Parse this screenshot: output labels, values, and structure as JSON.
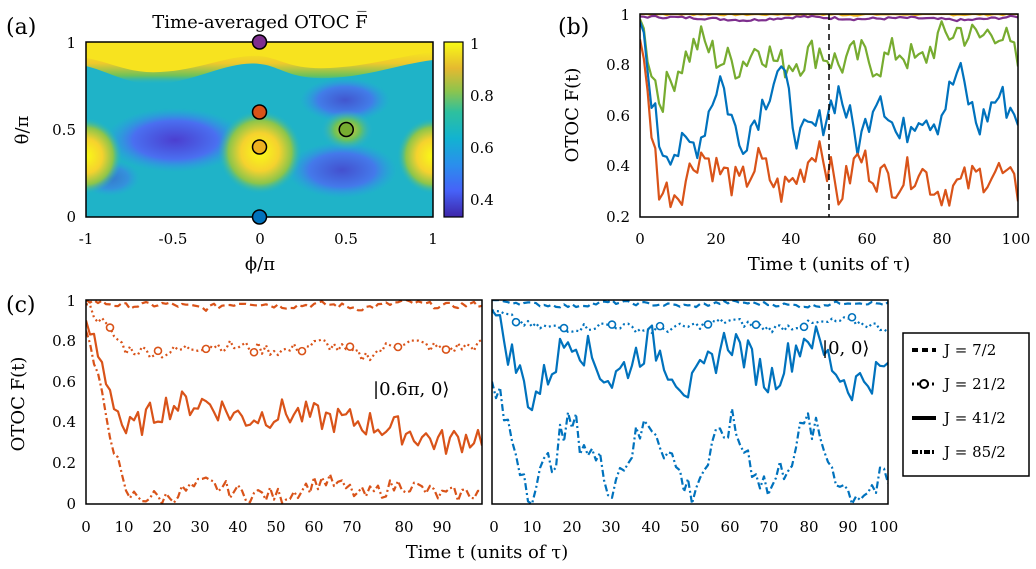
{
  "panels": {
    "a": {
      "label": "(a)",
      "title": "Time-averaged OTOC F̅",
      "xlabel": "ϕ/π",
      "ylabel": "θ/π",
      "xticks": [
        "-1",
        "-0.5",
        "0",
        "0.5",
        "1"
      ],
      "yticks": [
        "0",
        "0.5",
        "1"
      ],
      "colorbar_ticks": [
        "0.4",
        "0.6",
        "0.8",
        "1"
      ],
      "colormap": "parula",
      "colorbar_range": [
        0.33,
        1.0
      ],
      "markers": [
        {
          "phi": 0.0,
          "theta": 1.0,
          "color": "#7e2f8e"
        },
        {
          "phi": 0.0,
          "theta": 0.6,
          "color": "#d95319"
        },
        {
          "phi": 0.0,
          "theta": 0.4,
          "color": "#edb120"
        },
        {
          "phi": 0.5,
          "theta": 0.5,
          "color": "#77ac30"
        },
        {
          "phi": 0.0,
          "theta": 0.0,
          "color": "#0072bd"
        }
      ]
    },
    "b": {
      "label": "(b)",
      "xlabel": "Time t (units of τ)",
      "ylabel": "OTOC F(t)",
      "xticks": [
        "0",
        "20",
        "40",
        "60",
        "80",
        "100"
      ],
      "yticks": [
        "0.2",
        "0.4",
        "0.6",
        "0.8",
        "1"
      ],
      "vline_x": 50
    },
    "c": {
      "label": "(c)",
      "xlabel": "Time t (units of τ)",
      "ylabel": "OTOC F(t)",
      "left_xticks": [
        "0",
        "10",
        "20",
        "30",
        "40",
        "50",
        "60",
        "70",
        "80",
        "90"
      ],
      "right_xticks": [
        "0",
        "10",
        "20",
        "30",
        "40",
        "50",
        "60",
        "70",
        "80",
        "90",
        "100"
      ],
      "yticks": [
        "0",
        "0.2",
        "0.4",
        "0.6",
        "0.8",
        "1"
      ],
      "left_state": "|0.6π, 0⟩",
      "right_state": "|0, 0⟩"
    }
  },
  "legend": {
    "items": [
      {
        "label": "J = 7/2",
        "style": "dashed"
      },
      {
        "label": "J = 21/2",
        "style": "dotted-circle"
      },
      {
        "label": "J = 41/2",
        "style": "solid"
      },
      {
        "label": "J = 85/2",
        "style": "dash-dot"
      }
    ]
  },
  "chart_data": [
    {
      "type": "heatmap",
      "panel": "a",
      "title": "Time-averaged OTOC F̅",
      "xlabel": "ϕ/π",
      "ylabel": "θ/π",
      "xlim": [
        -1,
        1
      ],
      "ylim": [
        0,
        1
      ],
      "zlim": [
        0.33,
        1.0
      ]
    },
    {
      "type": "line",
      "panel": "b",
      "xlabel": "Time t (units of τ)",
      "ylabel": "OTOC F(t)",
      "xlim": [
        0,
        100
      ],
      "ylim": [
        0.2,
        1
      ],
      "series": [
        {
          "color": "#edb120",
          "values": [
            1.0,
            1.0,
            0.999,
            1.0,
            0.998,
            1.0,
            0.999,
            1.0
          ]
        },
        {
          "color": "#7e2f8e",
          "values": [
            0.99,
            0.985,
            0.975,
            0.99,
            0.98,
            0.985,
            0.975,
            0.99
          ]
        },
        {
          "color": "#77ac30",
          "values": [
            0.98,
            0.66,
            0.8,
            0.9,
            0.82,
            0.8,
            0.88,
            0.8,
            0.82,
            0.86,
            0.8,
            0.84,
            0.8,
            0.86,
            0.8,
            0.9,
            0.94,
            0.9,
            0.95,
            0.8
          ]
        },
        {
          "color": "#0072bd",
          "values": [
            0.97,
            0.48,
            0.46,
            0.5,
            0.76,
            0.48,
            0.62,
            0.8,
            0.5,
            0.56,
            0.7,
            0.48,
            0.72,
            0.5,
            0.62,
            0.58,
            0.78,
            0.55,
            0.68,
            0.6
          ]
        },
        {
          "color": "#d95319",
          "values": [
            0.9,
            0.3,
            0.3,
            0.46,
            0.38,
            0.32,
            0.42,
            0.3,
            0.36,
            0.5,
            0.28,
            0.44,
            0.36,
            0.34,
            0.4,
            0.3,
            0.32,
            0.36,
            0.38,
            0.3
          ]
        }
      ]
    },
    {
      "type": "line",
      "panel": "c-left",
      "xlabel": "Time t (units of τ)",
      "ylabel": "OTOC F(t)",
      "xlim": [
        0,
        100
      ],
      "ylim": [
        0,
        1
      ],
      "annotation": "|0.6π, 0⟩",
      "series": [
        {
          "name": "J = 7/2",
          "color": "#d95319",
          "values": [
            1.0,
            0.97,
            0.98,
            0.96,
            0.99,
            0.97,
            0.98,
            0.96,
            0.99,
            0.97,
            0.98
          ]
        },
        {
          "name": "J = 21/2",
          "color": "#d95319",
          "values": [
            0.98,
            0.76,
            0.74,
            0.78,
            0.77,
            0.75,
            0.79,
            0.72,
            0.8,
            0.76,
            0.78
          ]
        },
        {
          "name": "J = 41/2",
          "color": "#d95319",
          "values": [
            0.9,
            0.35,
            0.48,
            0.5,
            0.42,
            0.45,
            0.42,
            0.4,
            0.36,
            0.3,
            0.34
          ]
        },
        {
          "name": "J = 85/2",
          "color": "#d95319",
          "values": [
            0.85,
            0.04,
            0.03,
            0.1,
            0.05,
            0.04,
            0.12,
            0.04,
            0.1,
            0.04,
            0.06
          ]
        }
      ]
    },
    {
      "type": "line",
      "panel": "c-right",
      "xlabel": "Time t (units of τ)",
      "ylabel": "OTOC F(t)",
      "xlim": [
        0,
        100
      ],
      "ylim": [
        0,
        1
      ],
      "annotation": "|0, 0⟩",
      "series": [
        {
          "name": "J = 7/2",
          "color": "#0072bd",
          "values": [
            1.0,
            0.98,
            0.97,
            0.99,
            0.98,
            0.97,
            0.99,
            0.98,
            0.97,
            0.99,
            0.98
          ]
        },
        {
          "name": "J = 21/2",
          "color": "#0072bd",
          "values": [
            0.95,
            0.87,
            0.86,
            0.88,
            0.85,
            0.87,
            0.9,
            0.86,
            0.88,
            0.9,
            0.86
          ]
        },
        {
          "name": "J = 41/2",
          "color": "#0072bd",
          "values": [
            0.95,
            0.5,
            0.84,
            0.6,
            0.8,
            0.55,
            0.82,
            0.6,
            0.84,
            0.58,
            0.66
          ]
        },
        {
          "name": "J = 85/2",
          "color": "#0072bd",
          "values": [
            0.6,
            0.05,
            0.4,
            0.1,
            0.42,
            0.05,
            0.4,
            0.06,
            0.4,
            0.05,
            0.1
          ]
        }
      ]
    }
  ]
}
